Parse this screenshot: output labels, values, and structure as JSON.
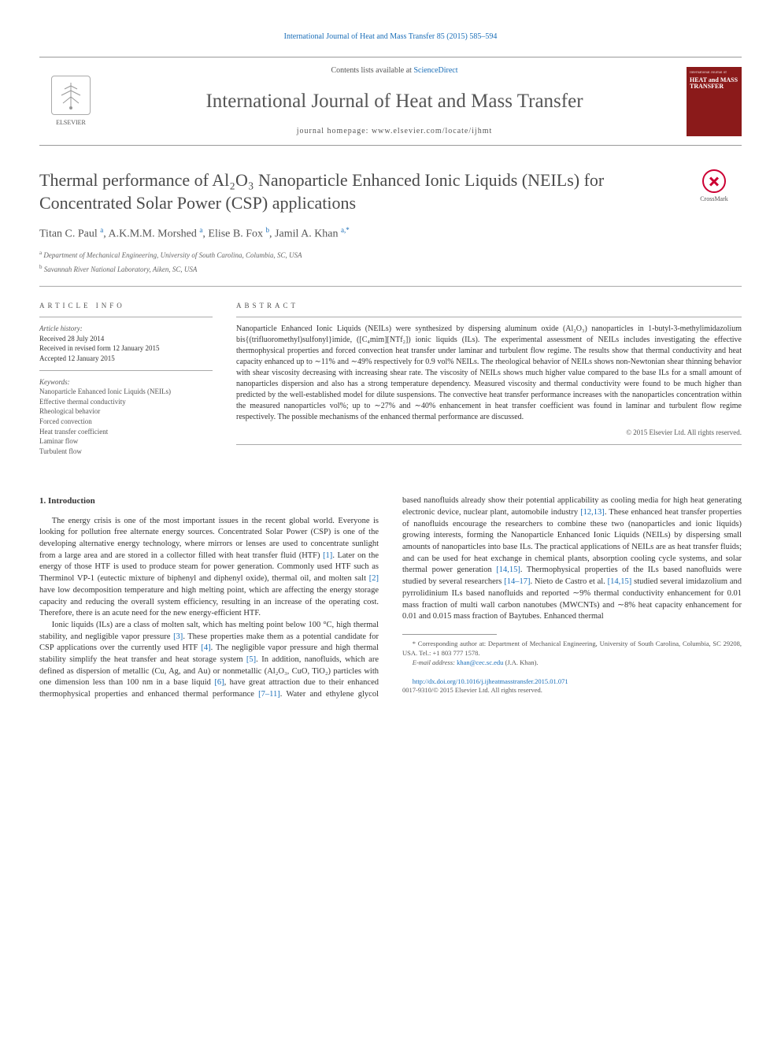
{
  "citation": "International Journal of Heat and Mass Transfer 85 (2015) 585–594",
  "header": {
    "elsevier_label": "ELSEVIER",
    "contents_prefix": "Contents lists available at ",
    "contents_link": "ScienceDirect",
    "journal_name": "International Journal of Heat and Mass Transfer",
    "homepage_prefix": "journal homepage: ",
    "homepage_url": "www.elsevier.com/locate/ijhmt",
    "cover_small": "International Journal of",
    "cover_big": "HEAT and MASS TRANSFER"
  },
  "crossmark_label": "CrossMark",
  "title": "Thermal performance of Al₂O₃ Nanoparticle Enhanced Ionic Liquids (NEILs) for Concentrated Solar Power (CSP) applications",
  "authors_html": "Titan C. Paul <sup class='sup'>a</sup>, A.K.M.M. Morshed <sup class='sup'>a</sup>, Elise B. Fox <sup class='sup'>b</sup>, Jamil A. Khan <sup class='sup'>a,*</sup>",
  "affiliations": [
    {
      "sup": "a",
      "text": "Department of Mechanical Engineering, University of South Carolina, Columbia, SC, USA"
    },
    {
      "sup": "b",
      "text": "Savannah River National Laboratory, Aiken, SC, USA"
    }
  ],
  "article_info": {
    "heading": "article info",
    "history_label": "Article history:",
    "history": [
      "Received 28 July 2014",
      "Received in revised form 12 January 2015",
      "Accepted 12 January 2015"
    ],
    "keywords_label": "Keywords:",
    "keywords": [
      "Nanoparticle Enhanced Ionic Liquids (NEILs)",
      "Effective thermal conductivity",
      "Rheological behavior",
      "Forced convection",
      "Heat transfer coefficient",
      "Laminar flow",
      "Turbulent flow"
    ]
  },
  "abstract": {
    "heading": "abstract",
    "text": "Nanoparticle Enhanced Ionic Liquids (NEILs) were synthesized by dispersing aluminum oxide (Al₂O₃) nanoparticles in 1-butyl-3-methylimidazolium bis{(trifluoromethyl)sulfonyl}imide, ([C₄mim][NTf₂]) ionic liquids (ILs). The experimental assessment of NEILs includes investigating the effective thermophysical properties and forced convection heat transfer under laminar and turbulent flow regime. The results show that thermal conductivity and heat capacity enhanced up to ∼11% and ∼49% respectively for 0.9 vol% NEILs. The rheological behavior of NEILs shows non-Newtonian shear thinning behavior with shear viscosity decreasing with increasing shear rate. The viscosity of NEILs shows much higher value compared to the base ILs for a small amount of nanoparticles dispersion and also has a strong temperature dependency. Measured viscosity and thermal conductivity were found to be much higher than predicted by the well-established model for dilute suspensions. The convective heat transfer performance increases with the nanoparticles concentration within the measured nanoparticles vol%; up to ∼27% and ∼40% enhancement in heat transfer coefficient was found in laminar and turbulent flow regime respectively. The possible mechanisms of the enhanced thermal performance are discussed.",
    "copyright": "© 2015 Elsevier Ltd. All rights reserved."
  },
  "intro": {
    "heading": "1. Introduction",
    "p1_a": "The energy crisis is one of the most important issues in the recent global world. Everyone is looking for pollution free alternate energy sources. Concentrated Solar Power (CSP) is one of the developing alternative energy technology, where mirrors or lenses are used to concentrate sunlight from a large area and are stored in a collector filled with heat transfer fluid (HTF) ",
    "p1_r1": "[1]",
    "p1_b": ". Later on the energy of those HTF is used to produce steam for power generation. Commonly used HTF such as Therminol VP-1 (eutectic mixture of biphenyl and diphenyl oxide), thermal oil, and molten salt ",
    "p1_r2": "[2]",
    "p1_c": " have low decomposition temperature and high melting point, which are affecting the energy storage capacity and reducing the overall system efficiency, resulting in an increase of the operating cost. Therefore, there is an acute need for the new energy-efficient HTF.",
    "p2_a": "Ionic liquids (ILs) are a class of molten salt, which has melting point below 100 °C, high thermal stability, and negligible vapor pressure ",
    "p2_r3": "[3]",
    "p2_b": ". These properties make them as a potential candidate for CSP applications over the currently used HTF ",
    "p2_r4": "[4]",
    "p2_c": ". The negligible ",
    "p3_a": "vapor pressure and high thermal stability simplify the heat transfer and heat storage system ",
    "p3_r5": "[5]",
    "p3_b": ". In addition, nanofluids, which are defined as dispersion of metallic (Cu, Ag, and Au) or nonmetallic (Al₂O₃, CuO, TiO₂) particles with one dimension less than 100 nm in a base liquid ",
    "p3_r6": "[6]",
    "p3_c": ", have great attraction due to their enhanced thermophysical properties and enhanced thermal performance ",
    "p3_r711": "[7–11]",
    "p3_d": ". Water and ethylene glycol based nanofluids already show their potential applicability as cooling media for high heat generating electronic device, nuclear plant, automobile industry ",
    "p3_r1213": "[12,13]",
    "p3_e": ". These enhanced heat transfer properties of nanofluids encourage the researchers to combine these two (nanoparticles and ionic liquids) growing interests, forming the Nanoparticle Enhanced Ionic Liquids (NEILs) by dispersing small amounts of nanoparticles into base ILs. The practical applications of NEILs are as heat transfer fluids; and can be used for heat exchange in chemical plants, absorption cooling cycle systems, and solar thermal power generation ",
    "p3_r1415a": "[14,15]",
    "p3_f": ". Thermophysical properties of the ILs based nanofluids were studied by several researchers ",
    "p3_r1417": "[14–17]",
    "p3_g": ". Nieto de Castro et al. ",
    "p3_r1415b": "[14,15]",
    "p3_h": " studied several imidazolium and pyrrolidinium ILs based nanofluids and reported ∼9% thermal conductivity enhancement for 0.01 mass fraction of multi wall carbon nanotubes (MWCNTs) and ∼8% heat capacity enhancement for 0.01 and 0.015 mass fraction of Baytubes. Enhanced thermal"
  },
  "footnote": {
    "corr_prefix": "* Corresponding author at: Department of Mechanical Engineering, University of South Carolina, Columbia, SC 29208, USA. Tel.: +1 803 777 1578.",
    "email_label": "E-mail address: ",
    "email": "khan@cec.sc.edu",
    "email_suffix": " (J.A. Khan).",
    "doi_link": "http://dx.doi.org/10.1016/j.ijheatmasstransfer.2015.01.071",
    "doi_suffix": "0017-9310/© 2015 Elsevier Ltd. All rights reserved."
  },
  "colors": {
    "link": "#1a6eb8",
    "rule": "#999999",
    "text": "#333333",
    "muted": "#555555",
    "cover_bg": "#8b1a1a"
  }
}
